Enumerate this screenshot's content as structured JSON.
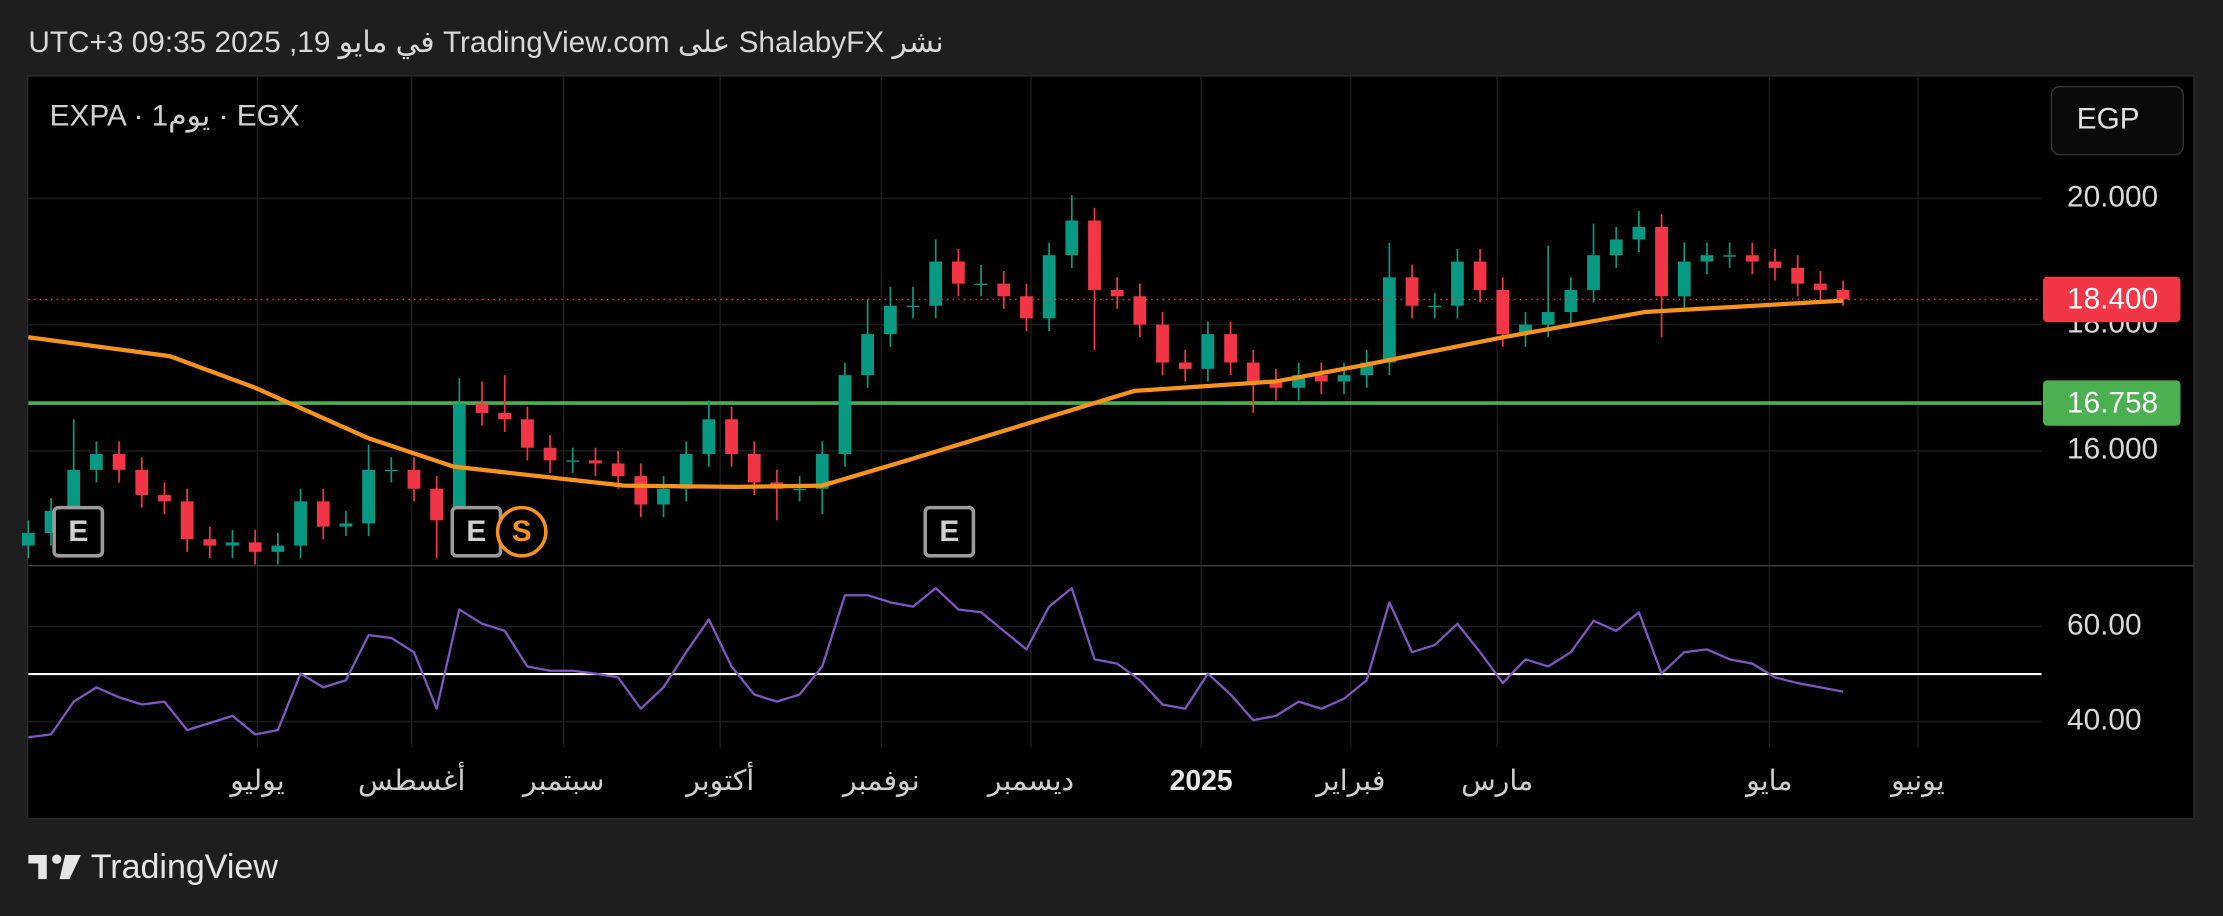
{
  "header": "نشر ShalabyFX على TradingView.com في مايو 19, 2025 09:35 UTC+3",
  "footer": {
    "brand": "TradingView"
  },
  "chart_data": [
    {
      "type": "candlestick",
      "title": "EXPA · 1يوم · EGX",
      "currency": "EGP",
      "colors": {
        "up": "#089981",
        "down": "#f23645"
      },
      "x": [
        0,
        1,
        2,
        3,
        4,
        5,
        6,
        7,
        8,
        9,
        10,
        11,
        12,
        13,
        14,
        15,
        16,
        17,
        18,
        19,
        20,
        21,
        22,
        23,
        24,
        25,
        26,
        27,
        28,
        29,
        30,
        31,
        32,
        33,
        34,
        35,
        36,
        37,
        38,
        39,
        40,
        41,
        42,
        43,
        44,
        45,
        46,
        47,
        48,
        49,
        50,
        51,
        52,
        53,
        54,
        55,
        56,
        57,
        58,
        59,
        60,
        61,
        62,
        63,
        64,
        65,
        66,
        67,
        68,
        69,
        70,
        71,
        72,
        73,
        74,
        75,
        76,
        77,
        78,
        79,
        80
      ],
      "open": [
        14.5,
        14.7,
        15.05,
        15.7,
        15.95,
        15.7,
        15.3,
        15.2,
        14.6,
        14.5,
        14.55,
        14.4,
        14.5,
        15.2,
        14.8,
        14.85,
        15.7,
        15.7,
        15.4,
        14.9,
        16.75,
        16.6,
        16.5,
        16.05,
        15.85,
        15.85,
        15.8,
        15.6,
        15.15,
        15.4,
        15.95,
        16.5,
        15.95,
        15.5,
        15.4,
        15.4,
        15.95,
        17.2,
        17.85,
        18.3,
        18.3,
        19.0,
        18.65,
        18.65,
        18.45,
        18.1,
        19.1,
        19.65,
        18.55,
        18.45,
        18.0,
        17.4,
        17.3,
        17.85,
        17.4,
        17.1,
        17.0,
        17.2,
        17.1,
        17.2,
        17.4,
        18.75,
        18.3,
        18.3,
        19.0,
        18.55,
        17.85,
        18.0,
        18.2,
        18.55,
        19.1,
        19.35,
        19.55,
        18.45,
        19.0,
        19.1,
        19.1,
        19.0,
        18.9,
        18.65,
        18.55
      ],
      "high": [
        14.9,
        15.25,
        16.5,
        16.15,
        16.15,
        15.9,
        15.5,
        15.4,
        14.8,
        14.75,
        14.75,
        14.7,
        15.4,
        15.4,
        15.05,
        16.1,
        15.9,
        15.9,
        15.6,
        17.15,
        17.1,
        17.2,
        16.7,
        16.25,
        16.05,
        16.05,
        16.0,
        15.8,
        15.6,
        16.15,
        16.8,
        16.7,
        16.15,
        15.7,
        15.6,
        16.15,
        17.4,
        18.4,
        18.6,
        18.6,
        19.35,
        19.2,
        18.95,
        18.85,
        18.65,
        19.3,
        20.05,
        19.85,
        18.75,
        18.65,
        18.2,
        17.6,
        18.05,
        18.05,
        17.6,
        17.3,
        17.4,
        17.4,
        17.4,
        17.6,
        19.3,
        18.95,
        18.5,
        19.2,
        19.2,
        18.75,
        18.2,
        19.25,
        18.75,
        19.6,
        19.55,
        19.8,
        19.75,
        19.3,
        19.3,
        19.3,
        19.3,
        19.2,
        19.1,
        18.85,
        18.7
      ],
      "low": [
        14.3,
        14.5,
        14.85,
        15.5,
        15.5,
        15.1,
        15.0,
        14.4,
        14.3,
        14.3,
        14.2,
        14.2,
        14.3,
        14.6,
        14.65,
        14.65,
        15.5,
        15.2,
        14.3,
        14.7,
        16.4,
        16.3,
        15.85,
        15.65,
        15.65,
        15.6,
        15.4,
        14.95,
        14.95,
        15.2,
        15.75,
        15.75,
        15.3,
        14.9,
        15.2,
        15.0,
        15.75,
        17.0,
        17.65,
        18.1,
        18.1,
        18.45,
        18.45,
        18.25,
        17.9,
        17.9,
        18.9,
        17.6,
        18.25,
        17.8,
        17.2,
        17.1,
        17.1,
        17.2,
        16.6,
        16.8,
        16.8,
        16.9,
        16.9,
        17.0,
        17.2,
        18.1,
        18.1,
        18.1,
        18.35,
        17.65,
        17.65,
        17.8,
        18.0,
        18.35,
        18.9,
        19.15,
        17.8,
        18.25,
        18.8,
        18.9,
        18.8,
        18.7,
        18.45,
        18.35,
        18.3
      ],
      "close": [
        14.7,
        15.05,
        15.7,
        15.95,
        15.7,
        15.3,
        15.2,
        14.6,
        14.5,
        14.55,
        14.4,
        14.5,
        15.2,
        14.8,
        14.85,
        15.7,
        15.7,
        15.4,
        14.9,
        16.75,
        16.6,
        16.5,
        16.05,
        15.85,
        15.85,
        15.8,
        15.6,
        15.15,
        15.4,
        15.95,
        16.5,
        15.95,
        15.5,
        15.4,
        15.4,
        15.95,
        17.2,
        17.85,
        18.3,
        18.3,
        19.0,
        18.65,
        18.65,
        18.45,
        18.1,
        19.1,
        19.65,
        18.55,
        18.45,
        18.0,
        17.4,
        17.3,
        17.85,
        17.4,
        17.1,
        17.0,
        17.2,
        17.1,
        17.2,
        17.4,
        18.75,
        18.3,
        18.3,
        19.0,
        18.55,
        17.85,
        18.0,
        18.2,
        18.55,
        19.1,
        19.35,
        19.55,
        18.45,
        19.0,
        19.1,
        19.1,
        19.0,
        18.9,
        18.65,
        18.55,
        18.4
      ],
      "moving_average": {
        "color": "#f7931a",
        "x": [
          0,
          6.25,
          10,
          15,
          18.75,
          26.25,
          31.25,
          35,
          38.75,
          43.75,
          48.75,
          55,
          58.75,
          65,
          71.25,
          80
        ],
        "values": [
          17.8,
          17.5,
          17.0,
          16.2,
          15.75,
          15.45,
          15.43,
          15.45,
          15.85,
          16.4,
          16.95,
          17.1,
          17.35,
          17.8,
          18.2,
          18.38
        ]
      },
      "level": {
        "value": 16.758,
        "color": "#4caf50"
      },
      "last_price": {
        "value": 18.4,
        "label": "18.400",
        "color": "#f23645"
      },
      "events": [
        {
          "x": 2.2,
          "label": "E"
        },
        {
          "x": 19.75,
          "label": "E"
        },
        {
          "x": 21.75,
          "label": "S"
        },
        {
          "x": 40.6,
          "label": "E"
        }
      ],
      "ylim": [
        14.18,
        21.93
      ],
      "yticks": [
        {
          "value": 16,
          "label": "16.000"
        },
        {
          "value": 18,
          "label": "18.000"
        },
        {
          "value": 20,
          "label": "20.000"
        }
      ]
    },
    {
      "type": "line",
      "color": "#7e57c2",
      "x": [
        0,
        1,
        2,
        3,
        4,
        5,
        6,
        7,
        8,
        9,
        10,
        11,
        12,
        13,
        14,
        15,
        16,
        17,
        18,
        19,
        20,
        21,
        22,
        23,
        24,
        25,
        26,
        27,
        28,
        29,
        30,
        31,
        32,
        33,
        34,
        35,
        36,
        37,
        38,
        39,
        40,
        41,
        42,
        43,
        44,
        45,
        46,
        47,
        48,
        49,
        50,
        51,
        52,
        53,
        54,
        55,
        56,
        57,
        58,
        59,
        60,
        61,
        62,
        63,
        64,
        65,
        66,
        67,
        68,
        69,
        70,
        71,
        72,
        73,
        74,
        75,
        76,
        77,
        78,
        79,
        80
      ],
      "values": [
        36.7,
        37.3,
        44.2,
        47.2,
        45.1,
        43.6,
        44.2,
        38.2,
        39.7,
        41.2,
        37.3,
        38.2,
        50.1,
        47.2,
        48.7,
        58.2,
        57.6,
        54.6,
        42.7,
        63.6,
        60.6,
        59.1,
        51.6,
        50.7,
        50.7,
        50.1,
        49.3,
        42.7,
        47.2,
        54.6,
        61.5,
        51.6,
        45.7,
        44.2,
        45.7,
        51.6,
        66.6,
        66.6,
        65.1,
        64.2,
        68.1,
        63.6,
        63.0,
        59.1,
        55.2,
        64.2,
        68.1,
        53.1,
        52.2,
        48.7,
        43.6,
        42.7,
        50.1,
        45.7,
        40.3,
        41.2,
        44.2,
        42.7,
        44.8,
        48.7,
        65.1,
        54.6,
        56.1,
        60.6,
        54.6,
        48.1,
        53.1,
        51.6,
        54.6,
        61.2,
        59.1,
        63.0,
        50.1,
        54.6,
        55.2,
        53.1,
        52.2,
        49.3,
        48.1,
        47.2,
        46.3
      ],
      "reference": {
        "value": 50,
        "color": "#ffffff"
      },
      "ylim": [
        34.6,
        72.8
      ],
      "yticks": [
        {
          "value": 40,
          "label": "40.00"
        },
        {
          "value": 60,
          "label": "60.00"
        }
      ],
      "xlim": [
        0,
        88.75
      ],
      "xticks": [
        {
          "value": 10.1,
          "label": "يوليو"
        },
        {
          "value": 16.9,
          "label": "أغسطس"
        },
        {
          "value": 23.6,
          "label": "سبتمبر"
        },
        {
          "value": 30.5,
          "label": "أكتوبر"
        },
        {
          "value": 37.6,
          "label": "نوفمبر"
        },
        {
          "value": 44.2,
          "label": "ديسمبر"
        },
        {
          "value": 51.7,
          "label": "2025",
          "bold": true
        },
        {
          "value": 58.3,
          "label": "فبراير"
        },
        {
          "value": 64.75,
          "label": "مارس"
        },
        {
          "value": 76.75,
          "label": "مايو"
        },
        {
          "value": 83.3,
          "label": "يونيو"
        }
      ]
    }
  ]
}
